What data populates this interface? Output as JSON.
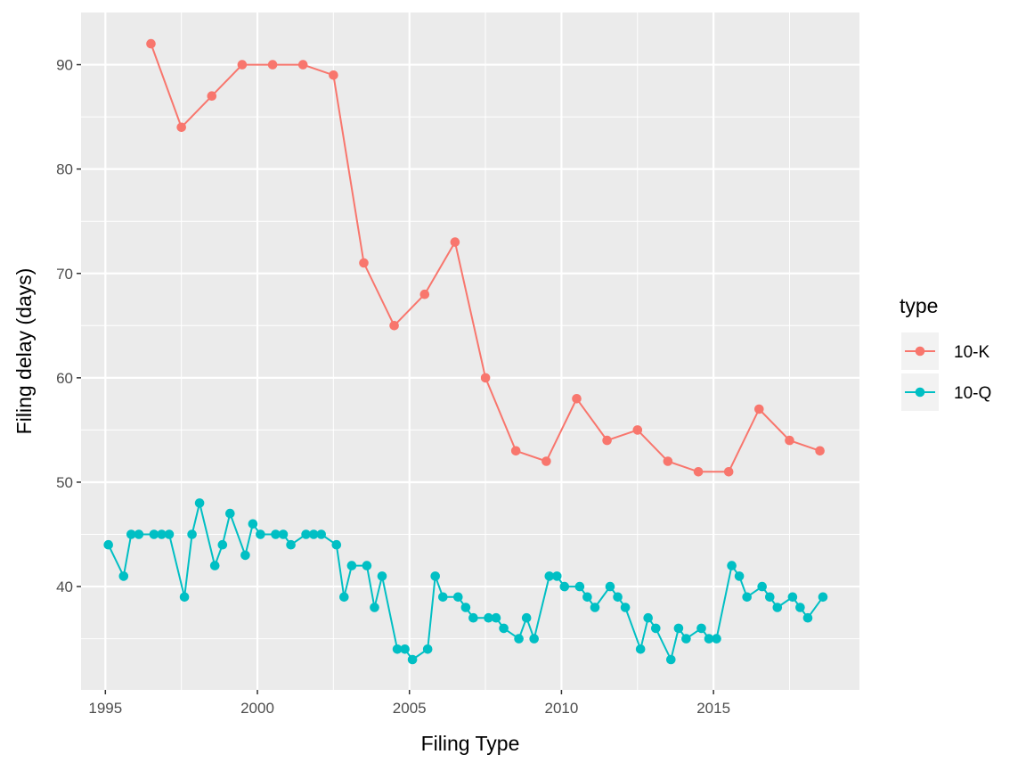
{
  "chart_data": {
    "type": "line",
    "xlabel": "Filing Type",
    "ylabel": "Filing delay (days)",
    "xlim": [
      1994.2,
      2019.8
    ],
    "ylim": [
      30.1,
      95
    ],
    "x_ticks": [
      1995,
      2000,
      2005,
      2010,
      2015
    ],
    "y_ticks": [
      40,
      50,
      60,
      70,
      80,
      90
    ],
    "grid": true,
    "legend": {
      "title": "type",
      "placement": "right",
      "entries": [
        "10-K",
        "10-Q"
      ]
    },
    "series": [
      {
        "name": "10-K",
        "color": "#F8766D",
        "points": [
          [
            1996.5,
            92
          ],
          [
            1997.5,
            84
          ],
          [
            1998.5,
            87
          ],
          [
            1999.5,
            90
          ],
          [
            2000.5,
            90
          ],
          [
            2001.5,
            90
          ],
          [
            2002.5,
            89
          ],
          [
            2003.5,
            71
          ],
          [
            2004.5,
            65
          ],
          [
            2005.5,
            68
          ],
          [
            2006.5,
            73
          ],
          [
            2007.5,
            60
          ],
          [
            2008.5,
            53
          ],
          [
            2009.5,
            52
          ],
          [
            2010.5,
            58
          ],
          [
            2011.5,
            54
          ],
          [
            2012.5,
            55
          ],
          [
            2013.5,
            52
          ],
          [
            2014.5,
            51
          ],
          [
            2015.5,
            51
          ],
          [
            2016.5,
            57
          ],
          [
            2017.5,
            54
          ],
          [
            2018.5,
            53
          ]
        ]
      },
      {
        "name": "10-Q",
        "color": "#00BFC4",
        "points": [
          [
            1995.1,
            44
          ],
          [
            1995.6,
            41
          ],
          [
            1995.85,
            45
          ],
          [
            1996.1,
            45
          ],
          [
            1996.6,
            45
          ],
          [
            1996.85,
            45
          ],
          [
            1997.1,
            45
          ],
          [
            1997.6,
            39
          ],
          [
            1997.85,
            45
          ],
          [
            1998.1,
            48
          ],
          [
            1998.6,
            42
          ],
          [
            1998.85,
            44
          ],
          [
            1999.1,
            47
          ],
          [
            1999.6,
            43
          ],
          [
            1999.85,
            46
          ],
          [
            2000.1,
            45
          ],
          [
            2000.6,
            45
          ],
          [
            2000.85,
            45
          ],
          [
            2001.1,
            44
          ],
          [
            2001.6,
            45
          ],
          [
            2001.85,
            45
          ],
          [
            2002.1,
            45
          ],
          [
            2002.6,
            44
          ],
          [
            2002.85,
            39
          ],
          [
            2003.1,
            42
          ],
          [
            2003.6,
            42
          ],
          [
            2003.85,
            38
          ],
          [
            2004.1,
            41
          ],
          [
            2004.6,
            34
          ],
          [
            2004.85,
            34
          ],
          [
            2005.1,
            33
          ],
          [
            2005.6,
            34
          ],
          [
            2005.85,
            41
          ],
          [
            2006.1,
            39
          ],
          [
            2006.6,
            39
          ],
          [
            2006.85,
            38
          ],
          [
            2007.1,
            37
          ],
          [
            2007.6,
            37
          ],
          [
            2007.85,
            37
          ],
          [
            2008.1,
            36
          ],
          [
            2008.6,
            35
          ],
          [
            2008.85,
            37
          ],
          [
            2009.1,
            35
          ],
          [
            2009.6,
            41
          ],
          [
            2009.85,
            41
          ],
          [
            2010.1,
            40
          ],
          [
            2010.6,
            40
          ],
          [
            2010.85,
            39
          ],
          [
            2011.1,
            38
          ],
          [
            2011.6,
            40
          ],
          [
            2011.85,
            39
          ],
          [
            2012.1,
            38
          ],
          [
            2012.6,
            34
          ],
          [
            2012.85,
            37
          ],
          [
            2013.1,
            36
          ],
          [
            2013.6,
            33
          ],
          [
            2013.85,
            36
          ],
          [
            2014.1,
            35
          ],
          [
            2014.6,
            36
          ],
          [
            2014.85,
            35
          ],
          [
            2015.1,
            35
          ],
          [
            2015.6,
            42
          ],
          [
            2015.85,
            41
          ],
          [
            2016.1,
            39
          ],
          [
            2016.6,
            40
          ],
          [
            2016.85,
            39
          ],
          [
            2017.1,
            38
          ],
          [
            2017.6,
            39
          ],
          [
            2017.85,
            38
          ],
          [
            2018.1,
            37
          ],
          [
            2018.6,
            39
          ]
        ]
      }
    ]
  }
}
